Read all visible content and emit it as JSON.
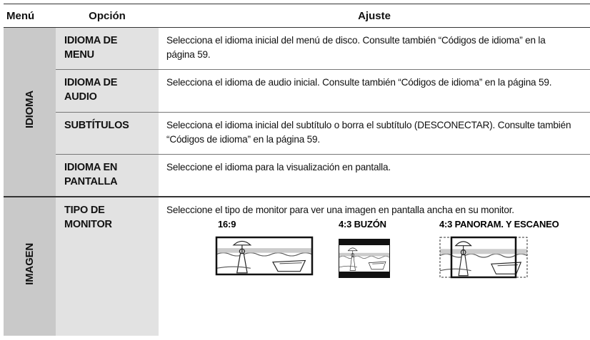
{
  "table": {
    "headers": [
      "Menú",
      "Opción",
      "Ajuste"
    ],
    "groups": [
      {
        "menu": "IDIOMA",
        "rows": [
          {
            "option": "IDIOMA DE MENU",
            "setting": "Selecciona el idioma inicial del menú de disco. Consulte también “Códigos de idioma” en la página 59."
          },
          {
            "option": "IDIOMA DE AUDIO",
            "setting": "Selecciona el idioma de audio inicial. Consulte también “Códigos de idioma” en la página 59."
          },
          {
            "option": "SUBTÍTULOS",
            "setting": "Selecciona el idioma inicial del subtítulo o borra el subtítulo (DESCONECTAR). Consulte también “Códigos de idioma” en la página 59."
          },
          {
            "option": "IDIOMA EN PANTALLA",
            "setting": "Seleccione el idioma para la visualización en pantalla."
          }
        ]
      },
      {
        "menu": "IMAGEN",
        "rows": [
          {
            "option": "TIPO DE MONITOR",
            "setting": "Seleccione el tipo de monitor para ver una imagen en pantalla ancha en su monitor.",
            "illustrations": [
              "16:9",
              "4:3 BUZÓN",
              "4:3 PANORAM. Y ESCANEO"
            ]
          }
        ]
      }
    ]
  }
}
